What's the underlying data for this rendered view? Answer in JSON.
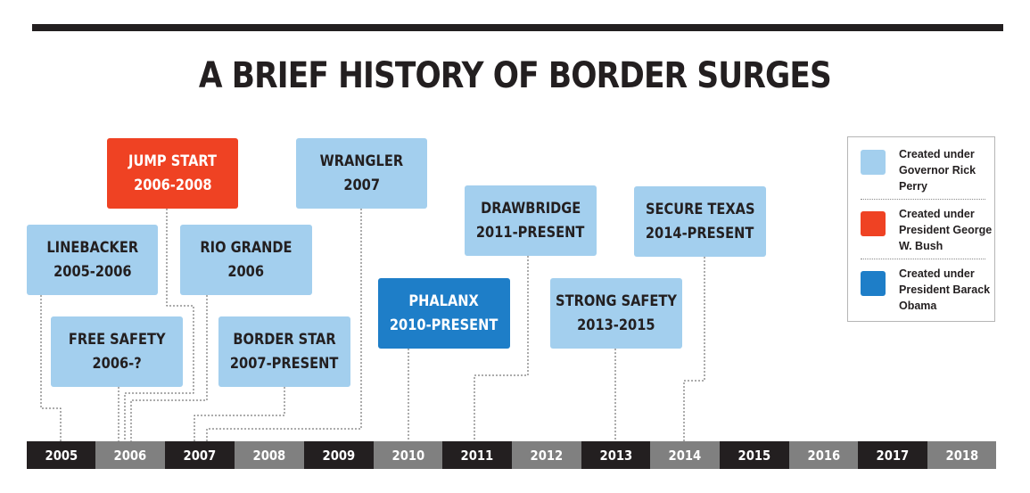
{
  "title": "A BRIEF HISTORY OF BORDER SURGES",
  "colors": {
    "perry": "#a3cfee",
    "bush": "#ef4223",
    "obama": "#1e7ec8",
    "ink": "#231f20",
    "axis_dark": "#231f20",
    "axis_gray": "#808080"
  },
  "operations": [
    {
      "id": "jump-start",
      "name": "JUMP START",
      "years": "2006-2008",
      "creator": "bush"
    },
    {
      "id": "wrangler",
      "name": "WRANGLER",
      "years": "2007",
      "creator": "perry"
    },
    {
      "id": "linebacker",
      "name": "LINEBACKER",
      "years": "2005-2006",
      "creator": "perry"
    },
    {
      "id": "rio-grande",
      "name": "RIO GRANDE",
      "years": "2006",
      "creator": "perry"
    },
    {
      "id": "drawbridge",
      "name": "DRAWBRIDGE",
      "years": "2011-PRESENT",
      "creator": "perry"
    },
    {
      "id": "secure-texas",
      "name": "SECURE TEXAS",
      "years": "2014-PRESENT",
      "creator": "perry"
    },
    {
      "id": "free-safety",
      "name": "FREE SAFETY",
      "years": "2006-?",
      "creator": "perry"
    },
    {
      "id": "border-star",
      "name": "BORDER STAR",
      "years": "2007-PRESENT",
      "creator": "perry"
    },
    {
      "id": "phalanx",
      "name": "PHALANX",
      "years": "2010-PRESENT",
      "creator": "obama"
    },
    {
      "id": "strong-safety",
      "name": "STRONG SAFETY",
      "years": "2013-2015",
      "creator": "perry"
    }
  ],
  "legend": [
    {
      "key": "perry",
      "text": "Created under Governor Rick Perry"
    },
    {
      "key": "bush",
      "text": "Created under President George W. Bush"
    },
    {
      "key": "obama",
      "text": "Created under President Barack Obama"
    }
  ],
  "timeline_years": [
    "2005",
    "2006",
    "2007",
    "2008",
    "2009",
    "2010",
    "2011",
    "2012",
    "2013",
    "2014",
    "2015",
    "2016",
    "2017",
    "2018"
  ]
}
